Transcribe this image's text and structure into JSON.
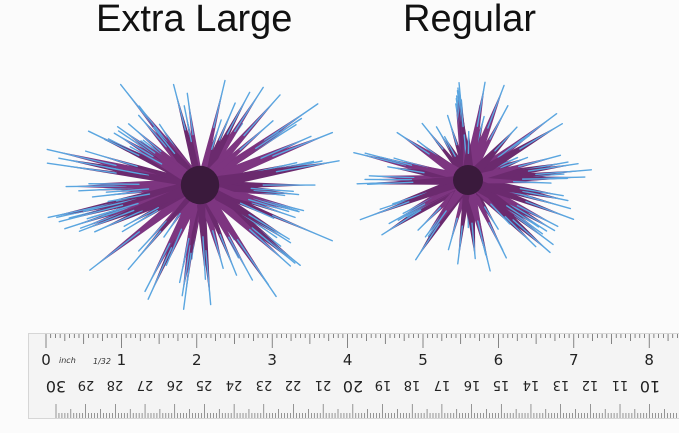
{
  "labels": {
    "left": "Extra Large",
    "right": "Regular"
  },
  "colors": {
    "petal_base": "#6b2a6e",
    "petal_tip": "#5aa6e0",
    "center": "#3a1a3c"
  },
  "ruler": {
    "unit_label": "inch",
    "fraction_label": "1/32",
    "inches": [
      "0",
      "1",
      "2",
      "3",
      "4",
      "5",
      "6",
      "7",
      "8"
    ],
    "cm": [
      "30",
      "29",
      "28",
      "27",
      "26",
      "25",
      "24",
      "23",
      "22",
      "21",
      "20",
      "19",
      "18",
      "17",
      "16",
      "15",
      "14",
      "13",
      "12",
      "11",
      "10"
    ]
  }
}
